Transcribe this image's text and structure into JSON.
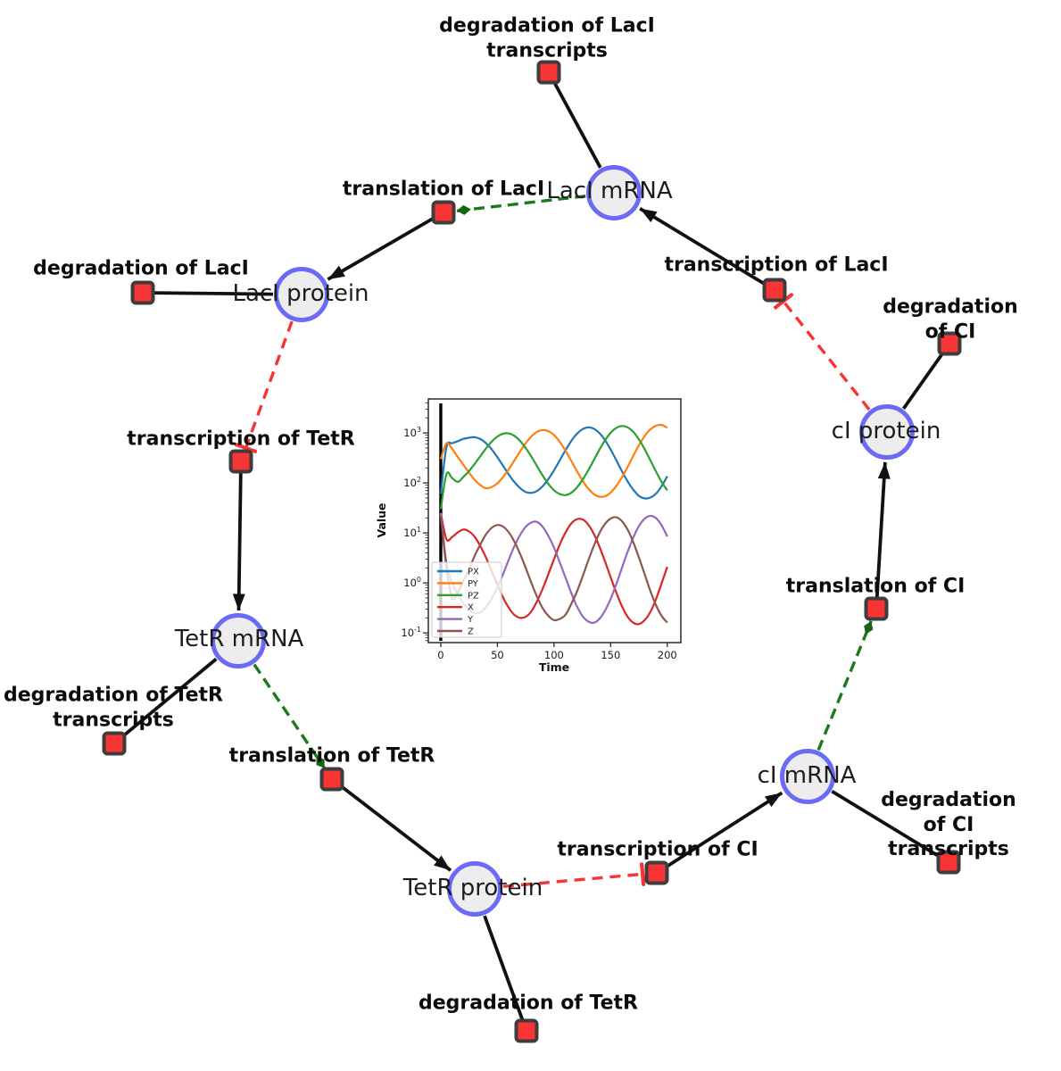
{
  "network": {
    "species": {
      "laci_mrna": {
        "label": "LacI mRNA"
      },
      "laci_protein": {
        "label": "LacI protein"
      },
      "tetr_mrna": {
        "label": "TetR mRNA"
      },
      "tetr_protein": {
        "label": "TetR protein"
      },
      "ci_mrna": {
        "label": "cI mRNA"
      },
      "ci_protein": {
        "label": "cI protein"
      }
    },
    "reactions": {
      "degradation_laci_transcripts": {
        "label": "degradation of LacI\ntranscripts"
      },
      "translation_laci": {
        "label": "translation of LacI"
      },
      "transcription_laci": {
        "label": "transcription of LacI"
      },
      "degradation_laci": {
        "label": "degradation of LacI"
      },
      "transcription_tetr": {
        "label": "transcription of TetR"
      },
      "degradation_tetr_transcripts": {
        "label": "degradation of TetR\ntranscripts"
      },
      "translation_tetr": {
        "label": "translation of TetR"
      },
      "degradation_tetr": {
        "label": "degradation of TetR"
      },
      "transcription_ci": {
        "label": "transcription of CI"
      },
      "degradation_ci_transcripts": {
        "label": "degradation of CI\ntranscripts"
      },
      "translation_ci": {
        "label": "translation of CI"
      },
      "degradation_ci": {
        "label": "degradation of CI"
      }
    },
    "colors": {
      "species_fill": "#ededee",
      "species_stroke": "#6a6af6",
      "reaction_fill": "#f83434",
      "reaction_stroke": "#3d3d3d",
      "mass_flow_edge": "#111111",
      "catalysis_edge": "#1c7a1c",
      "inhibition_edge": "#f63434"
    }
  },
  "chart_data": {
    "type": "line",
    "title": "",
    "xlabel": "Time",
    "ylabel": "Value",
    "y_scale": "log",
    "grid": false,
    "legend_position": "lower left",
    "xlim": [
      -11,
      212
    ],
    "ylim": [
      0.064,
      4780
    ],
    "x_ticks": [
      0,
      50,
      100,
      150,
      200
    ],
    "y_ticks": [
      0.1,
      1,
      10,
      100,
      1000
    ],
    "vline_x": 0,
    "x": [
      0,
      5,
      10,
      15,
      20,
      25,
      30,
      35,
      40,
      45,
      50,
      55,
      60,
      65,
      70,
      75,
      80,
      85,
      90,
      95,
      100,
      105,
      110,
      115,
      120,
      125,
      130,
      135,
      140,
      145,
      150,
      155,
      160,
      165,
      170,
      175,
      180,
      185,
      190,
      195,
      200
    ],
    "series": [
      {
        "name": "PX",
        "color": "#1f77b4",
        "values": [
          60,
          520,
          620,
          680,
          760,
          800,
          822,
          753,
          620,
          466,
          326,
          220,
          148,
          104,
          79,
          66,
          63,
          69,
          86,
          119,
          179,
          282,
          446,
          678,
          948,
          1180,
          1291,
          1219,
          1000,
          718,
          466,
          284,
          171,
          107,
          73,
          55,
          49,
          51,
          61,
          86,
          136
        ]
      },
      {
        "name": "PY",
        "color": "#ff7f0e",
        "values": [
          300,
          620,
          480,
          330,
          230,
          160,
          115,
          90,
          78,
          83,
          98,
          131,
          187,
          280,
          426,
          621,
          851,
          1047,
          1140,
          1084,
          902,
          665,
          446,
          282,
          176,
          113,
          78,
          60,
          53,
          54,
          64,
          87,
          130,
          209,
          348,
          569,
          865,
          1172,
          1390,
          1445,
          1274
        ]
      },
      {
        "name": "PZ",
        "color": "#2ca02c",
        "values": [
          30,
          150,
          125,
          105,
          132,
          173,
          241,
          345,
          491,
          670,
          845,
          966,
          980,
          875,
          693,
          499,
          334,
          216,
          140,
          96,
          71,
          60,
          57,
          63,
          80,
          114,
          175,
          283,
          458,
          710,
          1007,
          1262,
          1377,
          1294,
          1050,
          743,
          474,
          285,
          169,
          105,
          71
        ]
      },
      {
        "name": "X",
        "color": "#d62728",
        "values": [
          25,
          7.5,
          8.3,
          10.2,
          11.7,
          10.7,
          8.3,
          5.4,
          3.2,
          1.7,
          0.93,
          0.51,
          0.32,
          0.23,
          0.2,
          0.21,
          0.27,
          0.43,
          0.77,
          1.5,
          3.0,
          5.8,
          10.1,
          15.2,
          18.7,
          18.7,
          14.9,
          9.7,
          5.4,
          2.7,
          1.3,
          0.64,
          0.34,
          0.21,
          0.16,
          0.15,
          0.18,
          0.26,
          0.47,
          0.98,
          2.1
        ]
      },
      {
        "name": "Y",
        "color": "#9467bd",
        "values": [
          25,
          2.5,
          1.0,
          0.6,
          0.39,
          0.29,
          0.25,
          0.26,
          0.33,
          0.49,
          0.82,
          1.5,
          2.9,
          5.4,
          9.1,
          13.2,
          16.2,
          16.6,
          13.2,
          8.7,
          5.1,
          2.6,
          1.3,
          0.65,
          0.35,
          0.22,
          0.17,
          0.16,
          0.19,
          0.28,
          0.48,
          0.95,
          2.0,
          4.2,
          8.1,
          13.7,
          19.2,
          21.9,
          19.8,
          14.2,
          8.5
        ]
      },
      {
        "name": "Z",
        "color": "#8c564b",
        "values": [
          22,
          2.0,
          0.5,
          0.64,
          1.1,
          1.9,
          3.5,
          5.9,
          9.4,
          12.7,
          14.4,
          13.4,
          10.3,
          6.7,
          3.8,
          2.0,
          1.0,
          0.53,
          0.31,
          0.22,
          0.18,
          0.19,
          0.23,
          0.37,
          0.65,
          1.3,
          2.7,
          5.4,
          9.8,
          15.1,
          19.4,
          20.5,
          17.1,
          11.6,
          6.5,
          3.2,
          1.5,
          0.7,
          0.36,
          0.22,
          0.16
        ]
      }
    ]
  }
}
